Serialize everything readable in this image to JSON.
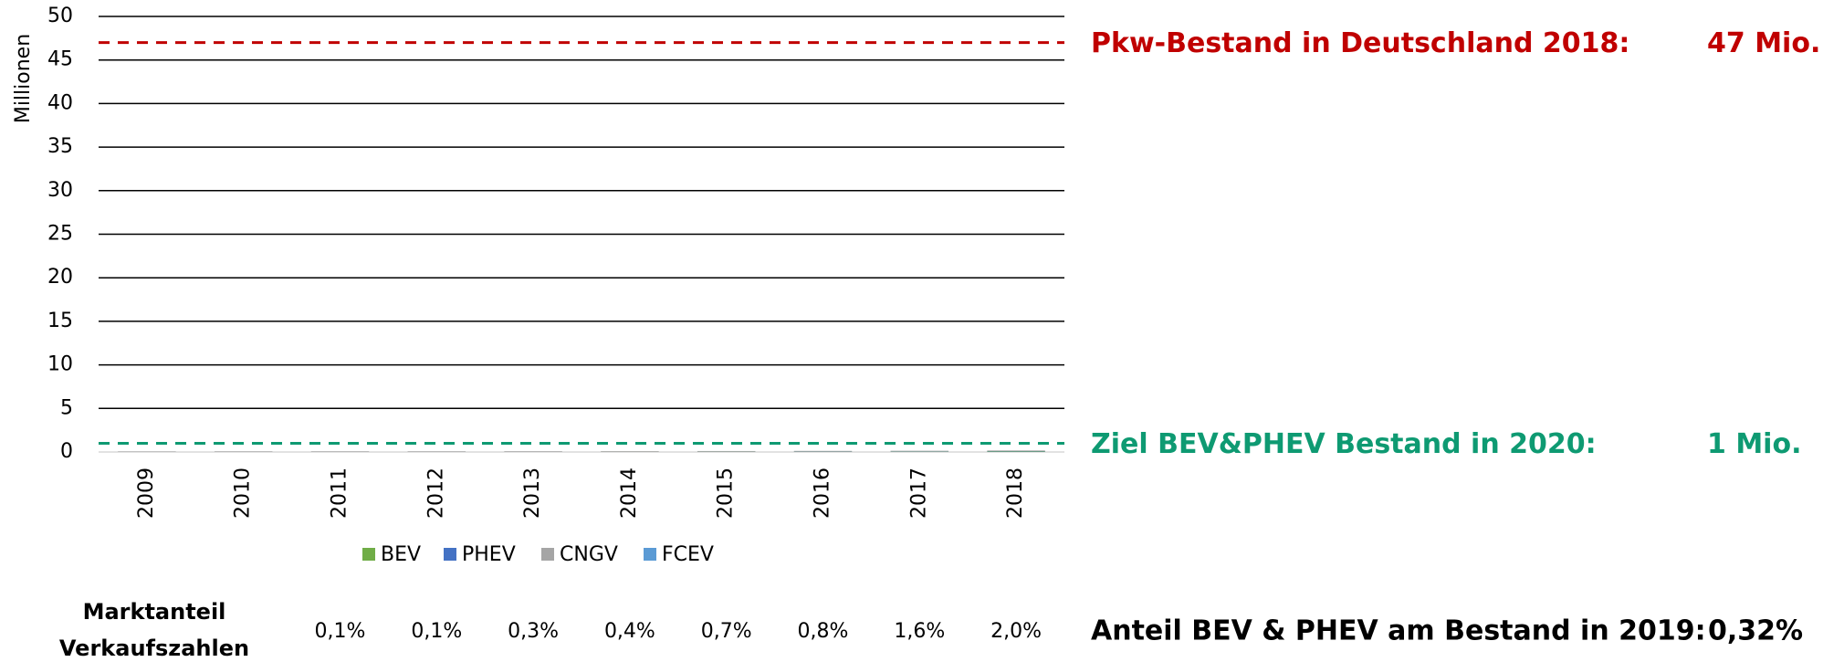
{
  "chart_data": {
    "type": "stacked_bar",
    "ylabel": "Millionen",
    "categories": [
      "2009",
      "2010",
      "2011",
      "2012",
      "2013",
      "2014",
      "2015",
      "2016",
      "2017",
      "2018"
    ],
    "series": [
      {
        "name": "BEV",
        "color": "#70ad47",
        "values": [
          0.0015,
          0.0016,
          0.0023,
          0.0045,
          0.0072,
          0.012,
          0.019,
          0.025,
          0.034,
          0.054
        ]
      },
      {
        "name": "PHEV",
        "color": "#4472c4",
        "values": [
          0,
          0,
          0,
          0,
          0,
          0,
          0.011,
          0.02,
          0.03,
          0.044
        ]
      },
      {
        "name": "CNGV",
        "color": "#a5a5a5",
        "values": [
          0.06,
          0.069,
          0.071,
          0.072,
          0.076,
          0.079,
          0.08,
          0.081,
          0.077,
          0.075
        ]
      },
      {
        "name": "FCEV",
        "color": "#5b9bd5",
        "values": [
          0.0001,
          0.0001,
          0.0001,
          0.0001,
          0.0001,
          0.0002,
          0.0002,
          0.0003,
          0.0004,
          0.0004
        ]
      }
    ],
    "ylim": [
      0,
      50
    ],
    "yticks": [
      0,
      5,
      10,
      15,
      20,
      25,
      30,
      35,
      40,
      45,
      50
    ],
    "grid": true,
    "legend": "bottom",
    "reference_lines": [
      {
        "value": 47,
        "label": "Pkw-Bestand in Deutschland 2018:",
        "value_label": "47 Mio.",
        "color": "#c00000"
      },
      {
        "value": 1,
        "label": "Ziel BEV&PHEV Bestand in 2020:",
        "value_label": "1 Mio.",
        "color": "#0e9a72"
      }
    ],
    "market_share": {
      "label": [
        "Marktanteil",
        "Verkaufszahlen"
      ],
      "values": [
        null,
        null,
        0.1,
        0.1,
        0.3,
        0.4,
        0.7,
        0.8,
        1.6,
        2.0
      ],
      "value_labels": [
        null,
        null,
        "0,1%",
        "0,1%",
        "0,3%",
        "0,4%",
        "0,7%",
        "0,8%",
        "1,6%",
        "2,0%"
      ]
    },
    "stock_share": {
      "label": "Anteil BEV & PHEV am Bestand in 2019:",
      "value": 0.32,
      "value_label": "0,32%"
    }
  }
}
